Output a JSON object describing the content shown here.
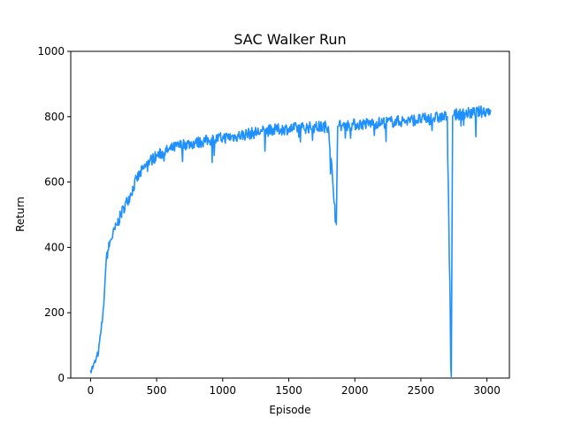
{
  "chart_data": {
    "type": "line",
    "title": "SAC Walker Run",
    "xlabel": "Episode",
    "ylabel": "Return",
    "xlim": [
      -150,
      3170
    ],
    "ylim": [
      0,
      1000
    ],
    "grid": false,
    "xticks": [
      0,
      500,
      1000,
      1500,
      2000,
      2500,
      3000
    ],
    "yticks": [
      0,
      200,
      400,
      600,
      800,
      1000
    ],
    "series": [
      {
        "color": "#1e90ff",
        "x": [
          0,
          20,
          40,
          60,
          80,
          100,
          110,
          120,
          150,
          200,
          250,
          300,
          350,
          400,
          450,
          500,
          600,
          700,
          800,
          900,
          1000,
          1100,
          1200,
          1300,
          1400,
          1500,
          1600,
          1700,
          1800,
          1860,
          1870,
          1880,
          1900,
          2000,
          2100,
          2200,
          2300,
          2400,
          2500,
          2600,
          2700,
          2730,
          2740,
          2750,
          2800,
          2900,
          3000,
          3030
        ],
        "y": [
          25,
          35,
          55,
          80,
          150,
          220,
          300,
          370,
          420,
          470,
          520,
          560,
          610,
          640,
          665,
          680,
          700,
          715,
          720,
          728,
          735,
          740,
          748,
          755,
          760,
          763,
          766,
          768,
          770,
          470,
          770,
          772,
          773,
          776,
          779,
          782,
          785,
          788,
          792,
          796,
          800,
          5,
          802,
          805,
          808,
          812,
          818,
          820
        ],
        "band": 18
      }
    ]
  }
}
